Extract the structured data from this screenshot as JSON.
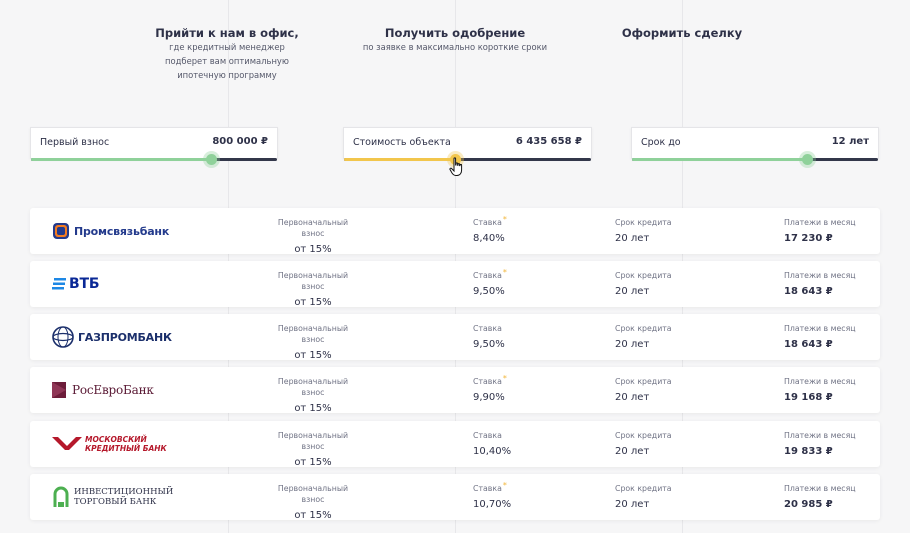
{
  "steps": [
    {
      "title": "Прийти к нам в офис,",
      "desc_lines": [
        "где кредитный менеджер",
        "подберет вам оптимальную",
        "ипотечную программу"
      ]
    },
    {
      "title": "Получить одобрение",
      "desc_lines": [
        "по заявке в максимально короткие сроки"
      ]
    },
    {
      "title": "Оформить сделку",
      "desc_lines": []
    }
  ],
  "sliders": [
    {
      "label": "Первый взнос",
      "value": "800 000 ₽",
      "fill_fraction": 0.73,
      "color": "#8fd19a"
    },
    {
      "label": "Стоимость объекта",
      "value": "6 435 658 ₽",
      "fill_fraction": 0.45,
      "color": "#f2c64c"
    },
    {
      "label": "Срок до",
      "value": "12 лет",
      "fill_fraction": 0.71,
      "color": "#8fd19a"
    }
  ],
  "captions": {
    "down_payment": "Первоначальный взнос",
    "rate": "Ставка",
    "term": "Срок кредита",
    "monthly": "Платежи в месяц",
    "star": "*"
  },
  "banks": [
    {
      "name": "Промсвязьбанк",
      "down": "от 15%",
      "rate": "8,40%",
      "rate_star": true,
      "term": "20 лет",
      "monthly": "17 230 ₽"
    },
    {
      "name": "ВТБ",
      "down": "от 15%",
      "rate": "9,50%",
      "rate_star": true,
      "term": "20 лет",
      "monthly": "18 643 ₽"
    },
    {
      "name": "ГАЗПРОМБАНК",
      "down": "от 15%",
      "rate": "9,50%",
      "rate_star": false,
      "term": "20 лет",
      "monthly": "18 643 ₽"
    },
    {
      "name": "РосЕвроБанк",
      "down": "от 15%",
      "rate": "9,90%",
      "rate_star": true,
      "term": "20 лет",
      "monthly": "19 168 ₽"
    },
    {
      "name_line1": "МОСКОВСКИЙ",
      "name_line2": "КРЕДИТНЫЙ БАНК",
      "down": "от 15%",
      "rate": "10,40%",
      "rate_star": false,
      "term": "20 лет",
      "monthly": "19 833 ₽"
    },
    {
      "name_line1": "ИНВЕСТИЦИОННЫЙ",
      "name_line2": "ТОРГОВЫЙ БАНК",
      "down": "от 15%",
      "rate": "10,70%",
      "rate_star": true,
      "term": "20 лет",
      "monthly": "20 985 ₽"
    }
  ]
}
